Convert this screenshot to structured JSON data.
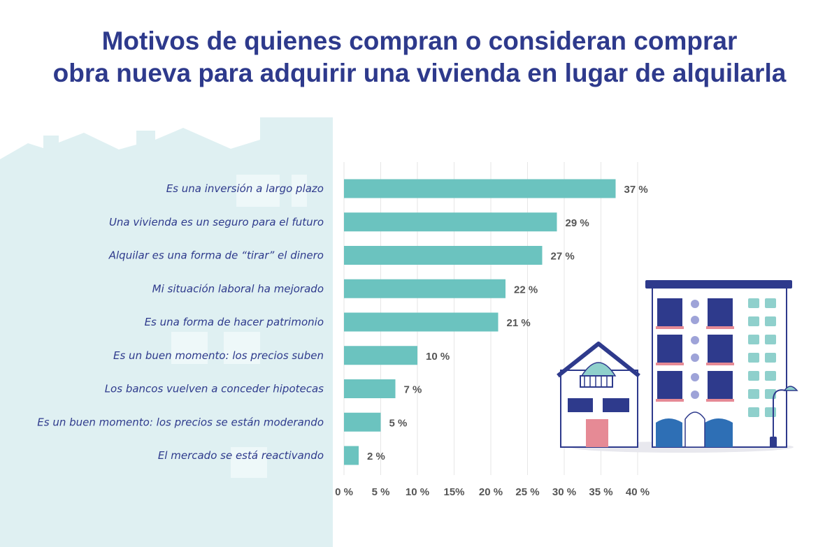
{
  "title": {
    "line1": "Motivos de quienes compran o consideran comprar",
    "line2": "obra nueva para adquirir una vivienda en lugar de alquilarla"
  },
  "colors": {
    "title": "#2e3a8c",
    "bar": "#6bc3bf",
    "background_panel": "#dff0f2",
    "grid": "#e6e6e6",
    "value_text": "#555555"
  },
  "chart_data": {
    "type": "bar",
    "orientation": "horizontal",
    "categories": [
      "Es una inversión a largo plazo",
      "Una vivienda es un seguro para el futuro",
      "Alquilar es una forma de “tirar” el dinero",
      "Mi situación laboral ha mejorado",
      "Es una forma de hacer patrimonio",
      "Es un buen momento: los precios suben",
      "Los bancos vuelven a conceder hipotecas",
      "Es un buen momento: los precios se están moderando",
      "El mercado se está reactivando"
    ],
    "values": [
      37,
      29,
      27,
      22,
      21,
      10,
      7,
      5,
      2
    ],
    "value_labels": [
      "37 %",
      "29 %",
      "27  %",
      "22 %",
      "21 %",
      "10 %",
      "7 %",
      "5 %",
      "2 %"
    ],
    "xlim": [
      0,
      40
    ],
    "x_ticks": [
      "0 %",
      "5 %",
      "10 %",
      "15%",
      "20 %",
      "25 %",
      "30 %",
      "35 %",
      "40 %"
    ],
    "x_tick_values": [
      0,
      5,
      10,
      15,
      20,
      25,
      30,
      35,
      40
    ],
    "grid": true,
    "xlabel": "",
    "ylabel": ""
  }
}
